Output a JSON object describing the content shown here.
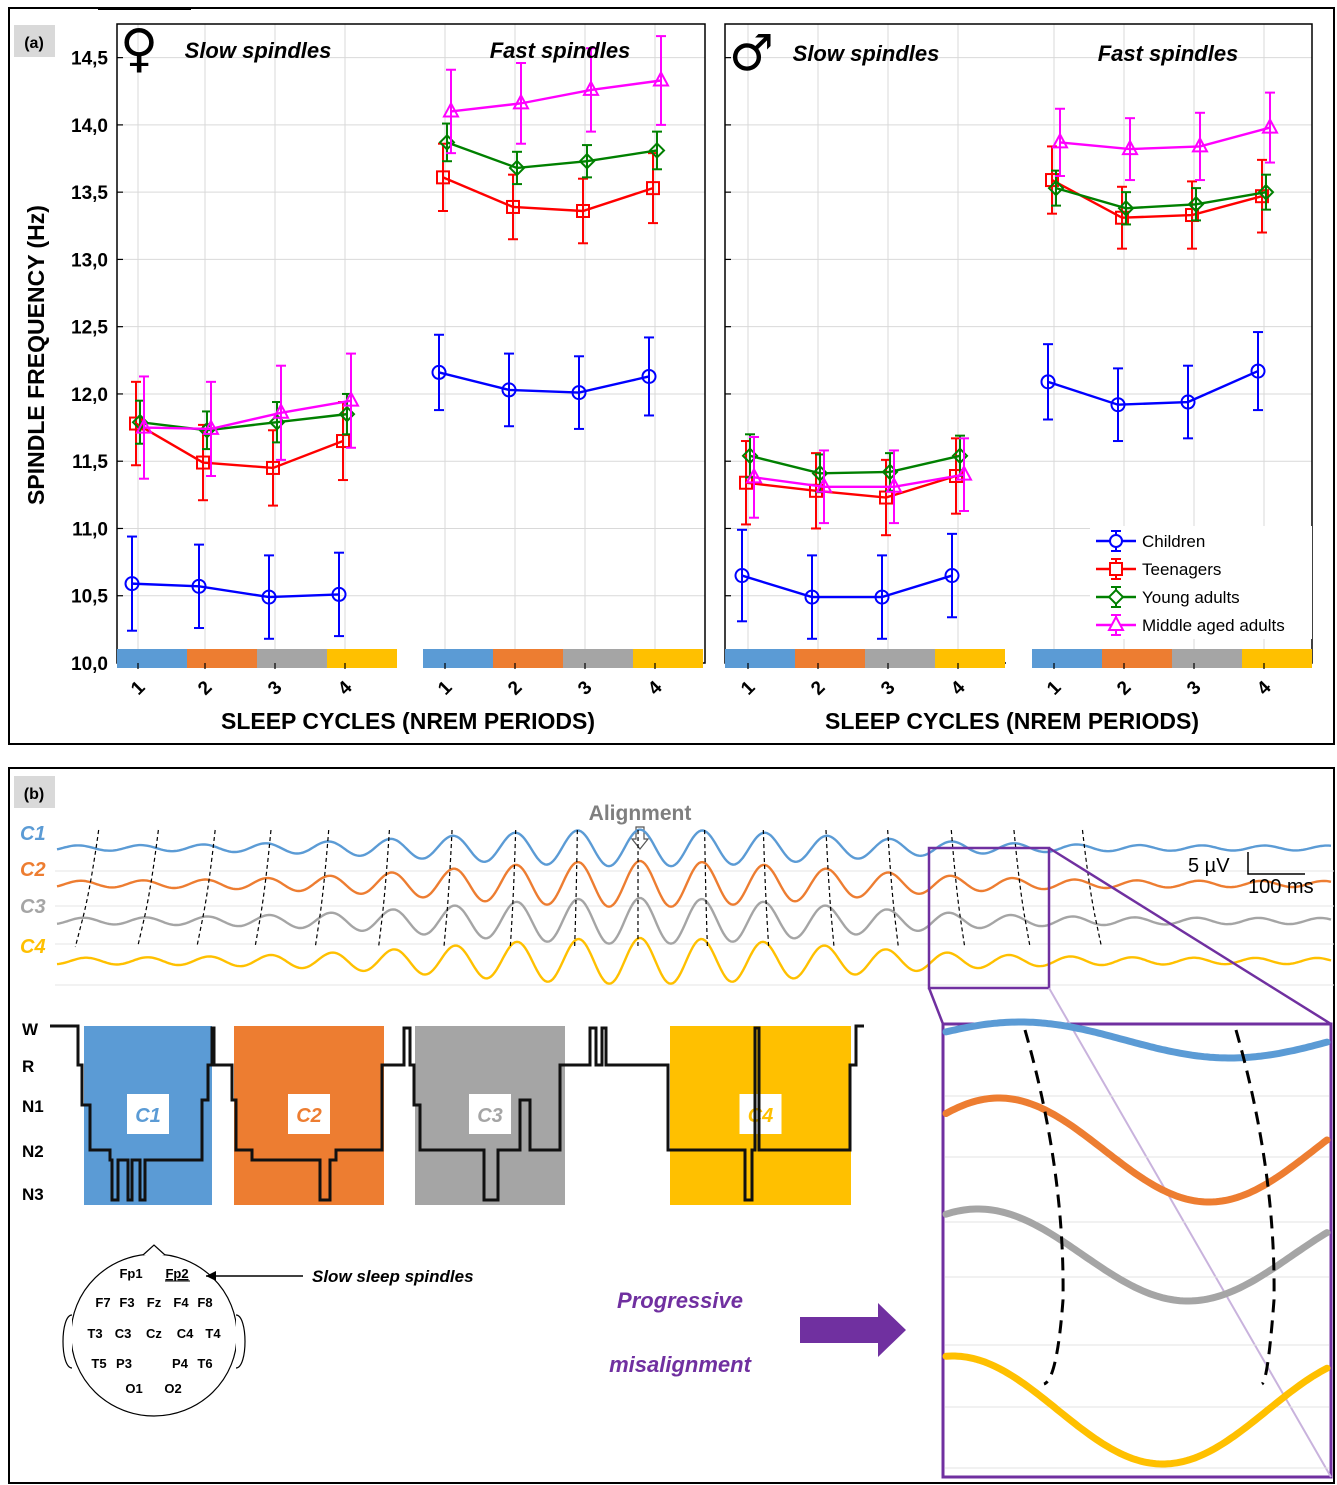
{
  "panel_a": {
    "tag": "(a)",
    "ylabel": "SPINDLE FREQUENCY (Hz)",
    "xlabel": "SLEEP CYCLES (NREM PERIODS)",
    "female_symbol": "♀",
    "male_symbol": "♂",
    "group_titles": [
      "Slow spindles",
      "Fast spindles"
    ],
    "yticks": [
      "10,0",
      "10,5",
      "11,0",
      "11,5",
      "12,0",
      "12,5",
      "13,0",
      "13,5",
      "14,0",
      "14,5"
    ],
    "xticks": [
      "1",
      "2",
      "3",
      "4"
    ],
    "cycle_colors": [
      "#5b9bd5",
      "#ed7d31",
      "#a5a5a5",
      "#ffc000"
    ],
    "legend": [
      "Children",
      "Teenagers",
      "Young adults",
      "Middle aged adults"
    ]
  },
  "chart_data": [
    {
      "type": "line",
      "panel": "female",
      "ylabel": "SPINDLE FREQUENCY (Hz)",
      "xlabel": "SLEEP CYCLES (NREM PERIODS)",
      "ylim": [
        10.0,
        14.75
      ],
      "categories": [
        "1",
        "2",
        "3",
        "4"
      ],
      "groups": [
        {
          "title": "Slow spindles",
          "series": [
            {
              "name": "Children",
              "color": "#0000ff",
              "marker": "circle",
              "values": [
                10.59,
                10.57,
                10.49,
                10.51
              ],
              "err": [
                0.35,
                0.31,
                0.31,
                0.31
              ]
            },
            {
              "name": "Teenagers",
              "color": "#ff0000",
              "marker": "square",
              "values": [
                11.78,
                11.49,
                11.45,
                11.65
              ],
              "err": [
                0.31,
                0.28,
                0.28,
                0.29
              ]
            },
            {
              "name": "Young adults",
              "color": "#008000",
              "marker": "diamond",
              "values": [
                11.79,
                11.73,
                11.79,
                11.85
              ],
              "err": [
                0.16,
                0.14,
                0.15,
                0.15
              ]
            },
            {
              "name": "Middle aged adults",
              "color": "#ff00ff",
              "marker": "triangle",
              "values": [
                11.75,
                11.74,
                11.86,
                11.95
              ],
              "err": [
                0.38,
                0.35,
                0.35,
                0.35
              ]
            }
          ]
        },
        {
          "title": "Fast spindles",
          "series": [
            {
              "name": "Children",
              "color": "#0000ff",
              "marker": "circle",
              "values": [
                12.16,
                12.03,
                12.01,
                12.13
              ],
              "err": [
                0.28,
                0.27,
                0.27,
                0.29
              ]
            },
            {
              "name": "Teenagers",
              "color": "#ff0000",
              "marker": "square",
              "values": [
                13.61,
                13.39,
                13.36,
                13.53
              ],
              "err": [
                0.25,
                0.24,
                0.24,
                0.26
              ]
            },
            {
              "name": "Young adults",
              "color": "#008000",
              "marker": "diamond",
              "values": [
                13.87,
                13.68,
                13.73,
                13.81
              ],
              "err": [
                0.14,
                0.12,
                0.12,
                0.14
              ]
            },
            {
              "name": "Middle aged adults",
              "color": "#ff00ff",
              "marker": "triangle",
              "values": [
                14.1,
                14.16,
                14.26,
                14.33
              ],
              "err": [
                0.31,
                0.3,
                0.31,
                0.33
              ]
            }
          ]
        }
      ]
    },
    {
      "type": "line",
      "panel": "male",
      "xlabel": "SLEEP CYCLES (NREM PERIODS)",
      "ylim": [
        10.0,
        14.75
      ],
      "categories": [
        "1",
        "2",
        "3",
        "4"
      ],
      "groups": [
        {
          "title": "Slow spindles",
          "series": [
            {
              "name": "Children",
              "color": "#0000ff",
              "marker": "circle",
              "values": [
                10.65,
                10.49,
                10.49,
                10.65
              ],
              "err": [
                0.34,
                0.31,
                0.31,
                0.31
              ]
            },
            {
              "name": "Teenagers",
              "color": "#ff0000",
              "marker": "square",
              "values": [
                11.34,
                11.28,
                11.23,
                11.39
              ],
              "err": [
                0.31,
                0.28,
                0.28,
                0.28
              ]
            },
            {
              "name": "Young adults",
              "color": "#008000",
              "marker": "diamond",
              "values": [
                11.54,
                11.41,
                11.42,
                11.54
              ],
              "err": [
                0.16,
                0.14,
                0.14,
                0.15
              ]
            },
            {
              "name": "Middle aged adults",
              "color": "#ff00ff",
              "marker": "triangle",
              "values": [
                11.38,
                11.31,
                11.31,
                11.4
              ],
              "err": [
                0.3,
                0.27,
                0.27,
                0.27
              ]
            }
          ]
        },
        {
          "title": "Fast spindles",
          "series": [
            {
              "name": "Children",
              "color": "#0000ff",
              "marker": "circle",
              "values": [
                12.09,
                11.92,
                11.94,
                12.17
              ],
              "err": [
                0.28,
                0.27,
                0.27,
                0.29
              ]
            },
            {
              "name": "Teenagers",
              "color": "#ff0000",
              "marker": "square",
              "values": [
                13.59,
                13.31,
                13.33,
                13.47
              ],
              "err": [
                0.25,
                0.23,
                0.25,
                0.27
              ]
            },
            {
              "name": "Young adults",
              "color": "#008000",
              "marker": "diamond",
              "values": [
                13.53,
                13.38,
                13.41,
                13.5
              ],
              "err": [
                0.13,
                0.12,
                0.12,
                0.13
              ]
            },
            {
              "name": "Middle aged adults",
              "color": "#ff00ff",
              "marker": "triangle",
              "values": [
                13.87,
                13.82,
                13.84,
                13.98
              ],
              "err": [
                0.25,
                0.23,
                0.25,
                0.26
              ]
            }
          ]
        }
      ]
    }
  ],
  "panel_b": {
    "tag": "(b)",
    "alignment_label": "Alignment",
    "trace_labels": [
      "C1",
      "C2",
      "C3",
      "C4"
    ],
    "trace_colors": [
      "#5b9bd5",
      "#ed7d31",
      "#a5a5a5",
      "#ffc000"
    ],
    "scale_voltage": "5 µV",
    "scale_time": "100 ms",
    "hypnogram_stages": [
      "W",
      "R",
      "N1",
      "N2",
      "N3"
    ],
    "cycle_labels": [
      "C1",
      "C2",
      "C3",
      "C4"
    ],
    "electrodes": [
      "Fp1",
      "Fp2",
      "F7",
      "F3",
      "Fz",
      "F4",
      "F8",
      "T3",
      "C3",
      "Cz",
      "C4",
      "T4",
      "T5",
      "P3",
      "P4",
      "T6",
      "O1",
      "O2"
    ],
    "electrode_note": "Slow sleep spindles",
    "progressive_line1": "Progressive",
    "progressive_line2": "misalignment",
    "accent_color": "#7030a0"
  }
}
